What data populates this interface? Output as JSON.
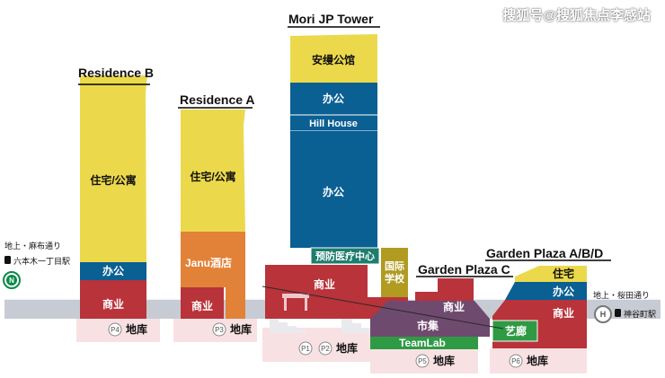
{
  "watermark": "搜狐号@搜狐焦点李感站",
  "colors": {
    "yellow": "#ecd94b",
    "blue": "#0a5f93",
    "red": "#b8333a",
    "orange": "#e28239",
    "olive": "#b19b20",
    "purple": "#6f4a6f",
    "green": "#2f9a44",
    "pink_shadow": "#f8e1e3",
    "ground": "#c7cbd3",
    "teal": "#1d7d6e"
  },
  "buildings": {
    "residence_b": {
      "title": "Residence B",
      "residential": "住宅/公寓",
      "office": "办公",
      "commercial": "商业"
    },
    "residence_a": {
      "title": "Residence A",
      "residential": "住宅/公寓",
      "hotel": "Janu酒店",
      "commercial": "商业"
    },
    "mori": {
      "title": "Mori JP Tower",
      "top": "安缦公馆",
      "office_upper": "办公",
      "hill_house": "Hill House",
      "office_main": "办公",
      "clinic": "预防医疗中心",
      "school": "国际学校",
      "commercial": "商业"
    },
    "garden_c": {
      "title": "Garden Plaza C",
      "commercial": "商业"
    },
    "garden_abd": {
      "title": "Garden Plaza A/B/D",
      "residential": "住宅",
      "office": "办公",
      "commercial": "商业",
      "gallery": "艺廊"
    }
  },
  "underground": {
    "market": "市集",
    "teamlab": "TeamLab"
  },
  "parking": {
    "p4": {
      "badge": "P4",
      "label": "地库"
    },
    "p3": {
      "badge": "P3",
      "label": "地库"
    },
    "p1": {
      "badge": "P1"
    },
    "p2": {
      "badge": "P2",
      "label": "地库"
    },
    "p5": {
      "badge": "P5",
      "label": "地库"
    },
    "p6": {
      "badge": "P6",
      "label": "地库"
    }
  },
  "stations": {
    "left": {
      "street": "地上・麻布通り",
      "name": "六本木一丁目駅",
      "badge": "N"
    },
    "right": {
      "street": "地上・桜田通り",
      "name": "神谷町駅",
      "badge": "H"
    }
  }
}
